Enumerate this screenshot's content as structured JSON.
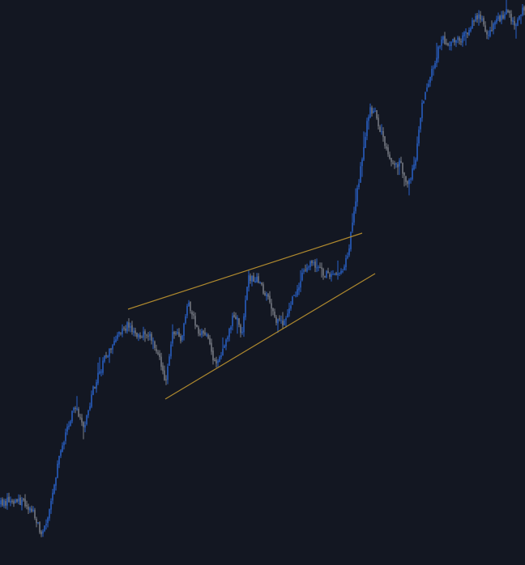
{
  "colors": {
    "background": "#131722",
    "up": "#2962c9",
    "down": "#7b7f88",
    "trendline": "#b08a2e"
  },
  "chart_data": {
    "type": "candlestick",
    "title": "",
    "xlabel": "",
    "ylabel": "",
    "grid": false,
    "legend": "none",
    "ylim": [
      0,
      698
    ],
    "anchors": [
      [
        0,
        75
      ],
      [
        12,
        80
      ],
      [
        28,
        78
      ],
      [
        40,
        68
      ],
      [
        52,
        35
      ],
      [
        60,
        60
      ],
      [
        72,
        130
      ],
      [
        80,
        160
      ],
      [
        92,
        195
      ],
      [
        104,
        170
      ],
      [
        116,
        220
      ],
      [
        132,
        262
      ],
      [
        150,
        290
      ],
      [
        160,
        298
      ],
      [
        170,
        280
      ],
      [
        182,
        288
      ],
      [
        196,
        258
      ],
      [
        204,
        225
      ],
      [
        214,
        290
      ],
      [
        224,
        280
      ],
      [
        232,
        325
      ],
      [
        244,
        290
      ],
      [
        256,
        285
      ],
      [
        266,
        245
      ],
      [
        276,
        272
      ],
      [
        290,
        312
      ],
      [
        298,
        282
      ],
      [
        306,
        355
      ],
      [
        318,
        352
      ],
      [
        330,
        330
      ],
      [
        340,
        300
      ],
      [
        350,
        298
      ],
      [
        360,
        325
      ],
      [
        372,
        355
      ],
      [
        386,
        375
      ],
      [
        398,
        362
      ],
      [
        412,
        355
      ],
      [
        422,
        365
      ],
      [
        430,
        385
      ],
      [
        436,
        430
      ],
      [
        446,
        495
      ],
      [
        456,
        565
      ],
      [
        464,
        555
      ],
      [
        474,
        525
      ],
      [
        484,
        492
      ],
      [
        494,
        495
      ],
      [
        504,
        470
      ],
      [
        512,
        495
      ],
      [
        522,
        575
      ],
      [
        532,
        605
      ],
      [
        544,
        650
      ],
      [
        556,
        645
      ],
      [
        568,
        648
      ],
      [
        580,
        665
      ],
      [
        592,
        680
      ],
      [
        602,
        650
      ],
      [
        612,
        670
      ],
      [
        624,
        683
      ],
      [
        636,
        670
      ],
      [
        648,
        690
      ]
    ],
    "trendlines": [
      {
        "x1": 158,
        "y1": 316,
        "x2": 447,
        "y2": 410
      },
      {
        "x1": 204,
        "y1": 205,
        "x2": 463,
        "y2": 360
      }
    ]
  }
}
